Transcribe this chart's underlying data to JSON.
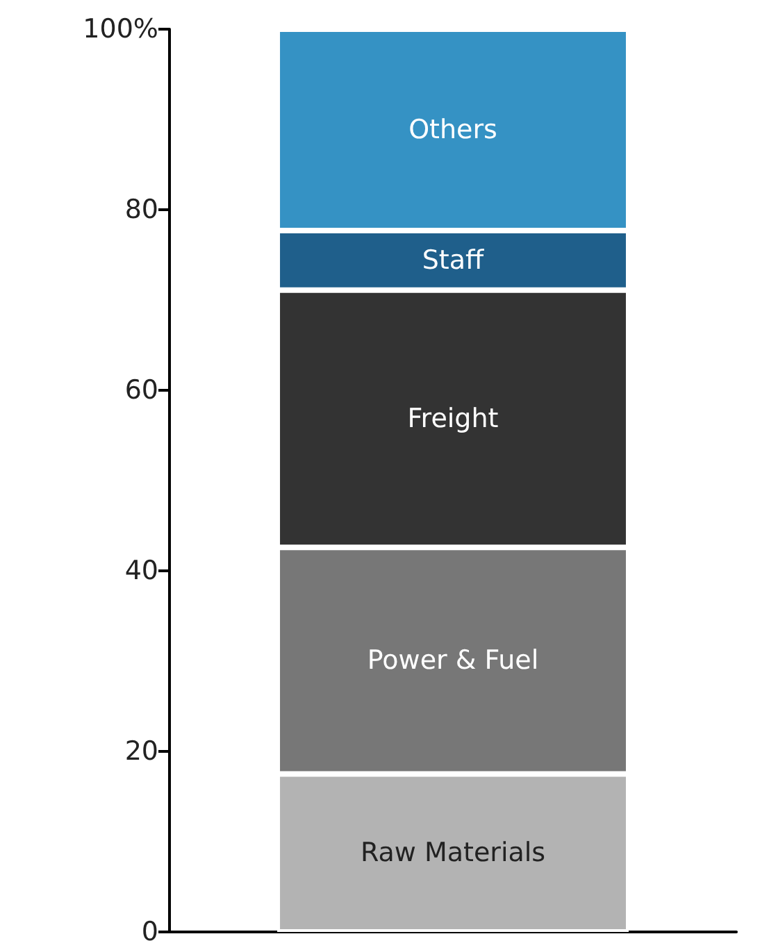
{
  "chart_data": {
    "type": "bar",
    "stacked": true,
    "categories": [
      null
    ],
    "series": [
      {
        "name": "Raw Materials",
        "color": "#b3b3b3",
        "values": [
          17.5
        ]
      },
      {
        "name": "Power & Fuel",
        "color": "#777777",
        "values": [
          25.1
        ]
      },
      {
        "name": "Freight",
        "color": "#333333",
        "values": [
          28.5
        ]
      },
      {
        "name": "Staff",
        "color": "#1f5f8b",
        "values": [
          6.6
        ]
      },
      {
        "name": "Others",
        "color": "#3592c4",
        "values": [
          22.3
        ]
      }
    ],
    "ylim": [
      0,
      100
    ],
    "yticks": [
      0,
      20,
      40,
      60,
      80,
      {
        "value": 100,
        "label": "100%"
      }
    ],
    "grid": false,
    "legend": false
  }
}
